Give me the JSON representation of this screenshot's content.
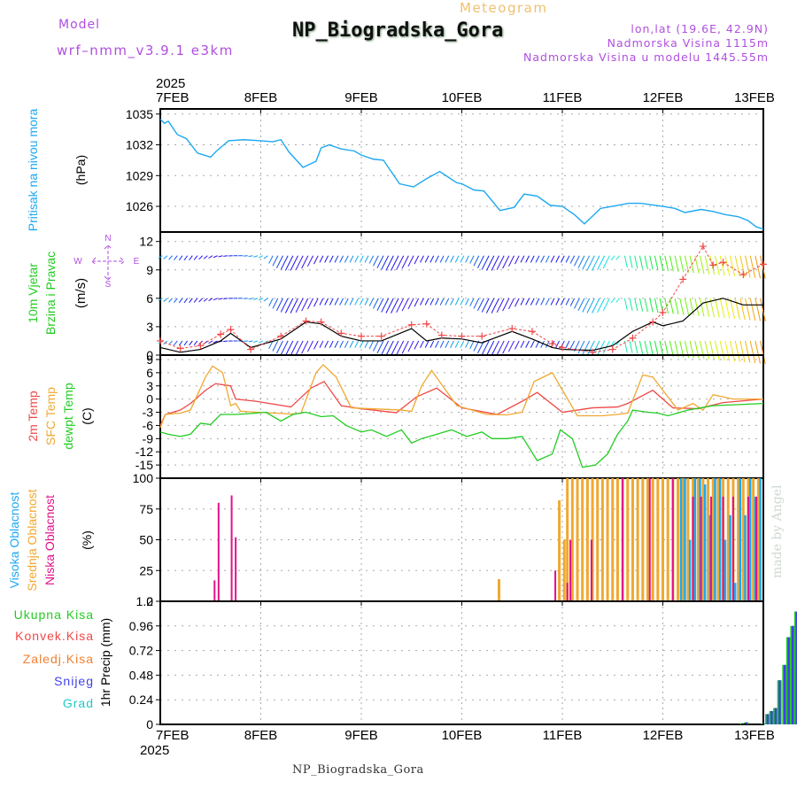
{
  "header": {
    "model_label": "Model",
    "model_version": "wrf–nmm_v3.9.1  e3km",
    "title": "NP_Biogradska_Gora",
    "subtitle": "Meteogram",
    "lonlat": "lon,lat (19.6E, 42.9N)",
    "elevation": "Nadmorska Visina 1115m",
    "model_elevation": "Nadmorska Visina u modelu 1445.55m"
  },
  "footer": {
    "station": "NP_Biogradska_Gora"
  },
  "watermark": "made by Angel",
  "time_axis": {
    "labels": [
      "7FEB",
      "8FEB",
      "9FEB",
      "10FEB",
      "11FEB",
      "12FEB",
      "13FEB"
    ],
    "year": "2025"
  },
  "compass": {
    "n": "N",
    "s": "S",
    "w": "W",
    "e": "E"
  },
  "colors": {
    "pressure": "#1ea8f0",
    "t2m": "#f04848",
    "tsfc": "#f0a830",
    "dewpt": "#22cc22",
    "cloud_high": "#1ea8f0",
    "cloud_mid": "#f0a830",
    "cloud_low": "#e0128a",
    "precip_total": "#22cc22",
    "precip_conv": "#f04848",
    "precip_frozen": "#f08030",
    "snow": "#4040e8",
    "hail": "#22c8c8",
    "axis_text": "#000",
    "title_purple": "#b04fe0"
  },
  "chart_data": [
    {
      "type": "line",
      "title": "Pritisak na nivou mora",
      "ylabel": "(hPa)",
      "ylim": [
        1023.5,
        1035.5
      ],
      "yticks": [
        1026,
        1029,
        1032,
        1035
      ],
      "ytick_labels": [
        "1026",
        "1029",
        "1032",
        "1035"
      ],
      "x_days": [
        0,
        6
      ],
      "grid": true,
      "series": [
        {
          "name": "Pritisak na nivou mora",
          "x": [
            0,
            0.04,
            0.08,
            0.17,
            0.26,
            0.37,
            0.5,
            0.56,
            0.68,
            0.83,
            1.0,
            1.12,
            1.2,
            1.28,
            1.42,
            1.55,
            1.6,
            1.68,
            1.8,
            1.93,
            2.0,
            2.12,
            2.22,
            2.38,
            2.52,
            2.65,
            2.78,
            2.95,
            3.0,
            3.12,
            3.22,
            3.38,
            3.52,
            3.62,
            3.75,
            3.88,
            4.0,
            4.12,
            4.22,
            4.38,
            4.55,
            4.66,
            4.78,
            5.0,
            5.12,
            5.22,
            5.38,
            5.5,
            5.62,
            5.75,
            5.85,
            5.93,
            6.0
          ],
          "values": [
            1034.5,
            1034.1,
            1034.3,
            1033.0,
            1032.6,
            1031.2,
            1030.8,
            1031.4,
            1032.4,
            1032.5,
            1032.4,
            1032.3,
            1032.5,
            1031.3,
            1029.8,
            1030.4,
            1031.7,
            1032.0,
            1031.6,
            1031.4,
            1031.0,
            1030.6,
            1030.5,
            1028.2,
            1027.9,
            1028.7,
            1029.4,
            1028.3,
            1028.2,
            1027.6,
            1027.5,
            1025.6,
            1025.9,
            1027.2,
            1027.0,
            1026.1,
            1026.0,
            1025.2,
            1024.3,
            1025.8,
            1026.1,
            1026.3,
            1026.3,
            1026.0,
            1025.8,
            1025.4,
            1025.7,
            1025.5,
            1025.2,
            1025.0,
            1024.6,
            1024.0,
            1023.8
          ]
        }
      ]
    },
    {
      "type": "line",
      "title": "10m Vjetar Brzina i Pravac",
      "ylabel": "(m/s)",
      "ylim": [
        0,
        13
      ],
      "yticks": [
        0,
        3,
        6,
        9,
        12
      ],
      "ytick_labels": [
        "0",
        "3",
        "6",
        "9",
        "12"
      ],
      "x_days": [
        0,
        6
      ],
      "grid": true,
      "series": [
        {
          "name": "wind_speed_mean",
          "color": "#000000",
          "x": [
            0,
            0.2,
            0.4,
            0.6,
            0.7,
            0.9,
            1.2,
            1.45,
            1.6,
            1.8,
            2.0,
            2.2,
            2.5,
            2.65,
            2.8,
            3.0,
            3.2,
            3.5,
            3.7,
            3.9,
            4.0,
            4.3,
            4.5,
            4.7,
            4.9,
            5.0,
            5.2,
            5.4,
            5.6,
            5.8,
            6.0
          ],
          "values": [
            0.8,
            0.3,
            0.6,
            1.5,
            2.3,
            0.8,
            1.7,
            3.5,
            3.3,
            2.0,
            1.5,
            1.5,
            2.8,
            1.5,
            1.8,
            1.7,
            1.3,
            2.5,
            1.7,
            0.8,
            0.6,
            0.5,
            1.0,
            2.5,
            3.5,
            3.1,
            3.6,
            5.5,
            6.0,
            5.3,
            5.3
          ]
        },
        {
          "name": "wind_gust",
          "color": "#f04848",
          "marker": "+",
          "x": [
            0,
            0.2,
            0.4,
            0.6,
            0.7,
            0.9,
            1.2,
            1.45,
            1.6,
            1.8,
            2.0,
            2.2,
            2.5,
            2.65,
            2.8,
            3.0,
            3.2,
            3.5,
            3.7,
            3.9,
            4.0,
            4.3,
            4.5,
            4.7,
            4.9,
            5.0,
            5.2,
            5.4,
            5.5,
            5.6,
            5.8,
            6.0
          ],
          "values": [
            1.5,
            0.7,
            1.0,
            2.2,
            2.7,
            0.6,
            2.0,
            3.6,
            3.5,
            2.3,
            2.0,
            2.0,
            3.2,
            3.3,
            2.1,
            2.0,
            2.0,
            2.8,
            2.5,
            1.2,
            0.8,
            0.3,
            0.6,
            1.8,
            3.5,
            4.5,
            8.0,
            11.5,
            9.5,
            9.8,
            8.5,
            9.6
          ]
        },
        {
          "name": "wind_barbs_row_1",
          "label_level": 10.5
        },
        {
          "name": "wind_barbs_row_2",
          "label_level": 6.0
        },
        {
          "name": "wind_barbs_row_3",
          "label_level": 1.5
        }
      ]
    },
    {
      "type": "line",
      "title": "2m Temp / SFC Temp / dewpt Temp",
      "ylabel": "(C)",
      "ylim": [
        -18,
        10
      ],
      "yticks": [
        -15,
        -12,
        -9,
        -6,
        -3,
        0,
        3,
        6,
        9
      ],
      "ytick_labels": [
        "-15",
        "-12",
        "-9",
        "-6",
        "-3",
        "0",
        "3",
        "6",
        "9"
      ],
      "x_days": [
        0,
        6
      ],
      "grid": true,
      "series": [
        {
          "name": "2m Temp",
          "x": [
            0,
            0.05,
            0.2,
            0.3,
            0.45,
            0.55,
            0.7,
            0.75,
            0.95,
            1.3,
            1.5,
            1.63,
            1.8,
            2.0,
            2.35,
            2.55,
            2.75,
            3.0,
            3.35,
            3.6,
            3.75,
            4.0,
            4.3,
            4.55,
            4.65,
            4.9,
            5.1,
            5.35,
            5.6,
            6.0
          ],
          "values": [
            -6,
            -3.5,
            -2.5,
            -1,
            2,
            3.5,
            3,
            0,
            -0.5,
            -1.8,
            2.5,
            4,
            -1.5,
            -2.2,
            -3.1,
            0.5,
            2.5,
            -2,
            -3.5,
            -0.5,
            1.5,
            -3,
            -2,
            -1.8,
            -1,
            2,
            -2,
            -2.2,
            -0.8,
            0
          ]
        },
        {
          "name": "SFC Temp",
          "x": [
            0,
            0.05,
            0.2,
            0.3,
            0.45,
            0.52,
            0.62,
            0.7,
            0.75,
            0.8,
            1.3,
            1.4,
            1.55,
            1.62,
            1.75,
            1.9,
            2.4,
            2.5,
            2.6,
            2.7,
            2.95,
            3.25,
            3.45,
            3.6,
            3.72,
            3.9,
            4.15,
            4.4,
            4.55,
            4.65,
            4.8,
            4.9,
            5.15,
            5.3,
            5.4,
            5.5,
            5.7,
            6.0
          ],
          "values": [
            -6.5,
            -3.5,
            -3.2,
            -2.5,
            5,
            7.5,
            6,
            -1.5,
            -1,
            -2.8,
            -3.4,
            -3.2,
            6,
            7.8,
            5,
            -2,
            -2.5,
            -2.8,
            3,
            6.5,
            -1.5,
            -3.5,
            -3.6,
            -3,
            4,
            6,
            -3.8,
            -3.8,
            -3.5,
            -3.2,
            5.5,
            5,
            -2.5,
            -1,
            -2.5,
            1,
            0,
            0
          ]
        },
        {
          "name": "dewpt Temp",
          "x": [
            0,
            0.08,
            0.2,
            0.3,
            0.4,
            0.5,
            0.6,
            0.75,
            0.9,
            1.05,
            1.2,
            1.32,
            1.45,
            1.6,
            1.72,
            1.85,
            2.0,
            2.1,
            2.25,
            2.4,
            2.5,
            2.6,
            2.75,
            2.9,
            3.05,
            3.2,
            3.3,
            3.45,
            3.6,
            3.75,
            3.9,
            3.98,
            4.1,
            4.2,
            4.33,
            4.45,
            4.55,
            4.65,
            4.7,
            4.85,
            4.95,
            5.05,
            5.25,
            5.5,
            6.0
          ],
          "values": [
            -7.5,
            -8,
            -8.5,
            -8,
            -5.5,
            -5.8,
            -3.5,
            -3.5,
            -3.3,
            -3,
            -5,
            -3.5,
            -3,
            -4,
            -3.8,
            -6,
            -7.5,
            -7,
            -8.5,
            -7,
            -10,
            -9,
            -8,
            -7,
            -8.5,
            -7.5,
            -9,
            -9,
            -8.5,
            -14,
            -12.5,
            -7,
            -9,
            -15.5,
            -15,
            -12.5,
            -8,
            -5,
            -2.5,
            -3,
            -3.2,
            -3.8,
            -2.5,
            -1.5,
            -1
          ]
        }
      ]
    },
    {
      "type": "bar",
      "title": "Visoka / Srednja / Niska Oblacnost",
      "ylabel": "(%)",
      "ylim": [
        0,
        100
      ],
      "yticks": [
        0,
        25,
        50,
        75,
        100
      ],
      "ytick_labels": [
        "0",
        "25",
        "50",
        "75",
        "100"
      ],
      "x_days": [
        0,
        6
      ],
      "grid": true,
      "series": [
        {
          "name": "Niska Oblacnost",
          "x": [
            0.54,
            0.58,
            0.71,
            0.75,
            3.93,
            4.05,
            4.08,
            4.29,
            4.6,
            4.87,
            5.1,
            5.3,
            5.38,
            5.48,
            5.6,
            5.7,
            5.85,
            5.93
          ],
          "values": [
            17,
            80,
            86,
            52,
            25,
            15,
            50,
            50,
            100,
            100,
            100,
            85,
            85,
            85,
            85,
            85,
            85,
            85
          ]
        },
        {
          "name": "Srednja Oblacnost",
          "x": [
            3.37,
            3.97,
            4.02,
            4.05,
            4.1,
            4.15,
            4.2,
            4.25,
            4.3,
            4.35,
            4.4,
            4.45,
            4.5,
            4.55,
            4.6,
            4.65,
            4.7,
            4.75,
            4.8,
            4.85,
            4.9,
            4.95,
            5.0,
            5.05,
            5.1,
            5.15,
            5.2,
            5.25,
            5.3,
            5.35,
            5.4,
            5.45,
            5.5,
            5.55,
            5.6,
            5.65,
            5.7,
            5.75,
            5.8,
            5.85,
            5.9,
            5.95
          ],
          "values": [
            18,
            82,
            50,
            100,
            100,
            100,
            100,
            100,
            100,
            100,
            100,
            100,
            100,
            100,
            100,
            100,
            100,
            100,
            100,
            100,
            100,
            100,
            100,
            100,
            100,
            100,
            100,
            100,
            100,
            100,
            100,
            100,
            100,
            100,
            100,
            100,
            100,
            100,
            100,
            100,
            100,
            100
          ]
        },
        {
          "name": "Visoka Oblacnost",
          "x": [
            5.18,
            5.22,
            5.27,
            5.32,
            5.37,
            5.42,
            5.47,
            5.52,
            5.57,
            5.62,
            5.67,
            5.72,
            5.77,
            5.82,
            5.87,
            5.92,
            5.97
          ],
          "values": [
            100,
            100,
            50,
            100,
            100,
            95,
            70,
            100,
            100,
            50,
            70,
            15,
            100,
            70,
            100,
            85,
            100
          ]
        }
      ]
    },
    {
      "type": "bar",
      "title": "1hr Precip",
      "ylabel": "1hr Precip (mm)",
      "ylim": [
        0,
        1.2
      ],
      "yticks": [
        0,
        0.24,
        0.48,
        0.72,
        0.96,
        1.2
      ],
      "ytick_labels": [
        "0",
        "0.24",
        "0.48",
        "0.72",
        "0.96",
        "1.2"
      ],
      "x_days": [
        0,
        6
      ],
      "grid": true,
      "legend": [
        "Ukupna Kisa",
        "Konvek.Kisa",
        "Zaledj.Kisa",
        "Snijeg",
        "Grad"
      ],
      "series": [
        {
          "name": "Ukupna Kisa",
          "x": [
            5.79,
            5.83,
            6.0,
            6.04,
            6.08,
            6.12,
            6.16,
            6.21,
            6.25,
            6.29,
            6.33,
            6.37,
            6.42,
            6.46,
            6.5,
            6.54,
            6.58,
            6.62,
            6.67,
            6.71,
            6.75,
            6.79,
            6.83,
            6.87,
            6.92,
            6.96
          ],
          "values": [
            0.01,
            0.02,
            0.01,
            0.1,
            0.13,
            0.16,
            0.43,
            0.58,
            0.85,
            0.96,
            1.1,
            0.72,
            0.72,
            0.7,
            0.82,
            0.83,
            0.63,
            0.61,
            0.81,
            0.88,
            0.73,
            1.15,
            1.13,
            0.77,
            0.85,
            0.82
          ]
        },
        {
          "name": "Snijeg",
          "x": [
            5.79,
            5.83,
            6.0,
            6.04,
            6.08,
            6.12,
            6.16,
            6.21,
            6.25,
            6.29,
            6.33,
            6.37,
            6.42,
            6.46,
            6.5,
            6.54,
            6.58,
            6.62,
            6.67,
            6.71,
            6.75,
            6.79,
            6.83,
            6.87,
            6.92,
            6.96
          ],
          "values": [
            0.01,
            0.02,
            0.01,
            0.1,
            0.13,
            0.16,
            0.43,
            0.58,
            0.85,
            0.96,
            1.1,
            0.72,
            0.72,
            0.7,
            0.82,
            0.83,
            0.63,
            0.61,
            0.81,
            0.88,
            0.73,
            1.15,
            1.13,
            0.77,
            0.85,
            0.55
          ]
        }
      ]
    }
  ],
  "panels": [
    {
      "key": "p",
      "title_lines": [
        "Pritisak na nivou mora"
      ],
      "unit": "(hPa)"
    },
    {
      "key": "w",
      "title_lines": [
        "10m Vjetar",
        "Brzina i Pravac"
      ],
      "unit": "(m/s)"
    },
    {
      "key": "t",
      "title_lines": [
        "2m Temp",
        "SFC Temp",
        "dewpt Temp"
      ],
      "unit": "(C)"
    },
    {
      "key": "c",
      "title_lines": [
        "Visoka Oblacnost",
        "Srednja Oblacnost",
        "Niska Oblacnost"
      ],
      "unit": "(%)"
    },
    {
      "key": "r",
      "title_lines": [
        "1hr Precip (mm)"
      ],
      "unit": ""
    }
  ],
  "precip_legend": [
    "Ukupna Kisa",
    "Konvek.Kisa",
    "Zaledj.Kisa",
    "Snijeg",
    "Grad"
  ]
}
